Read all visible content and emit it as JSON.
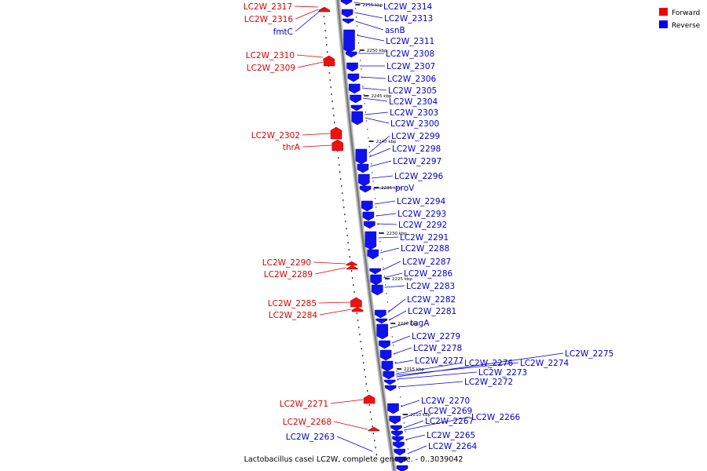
{
  "legend": [
    {
      "label": "Forward",
      "color": "#ee0000"
    },
    {
      "label": "Reverse",
      "color": "#0000ee"
    }
  ],
  "caption": "Lactobacillus casei LC2W, complete genome. - 0..3039042",
  "ticks": [
    "2255 kbp",
    "2250 kbp",
    "2245 kbp",
    "2240 kbp",
    "2235 kbp",
    "2230 kbp",
    "2225 kbp",
    "2220 kbp",
    "2215 kbp",
    "2210 kbp"
  ],
  "genes_forward": [
    {
      "name": "LC2W_2317"
    },
    {
      "name": "LC2W_2316"
    },
    {
      "name": "LC2W_2310"
    },
    {
      "name": "LC2W_2309"
    },
    {
      "name": "LC2W_2302"
    },
    {
      "name": "thrA"
    },
    {
      "name": "LC2W_2290"
    },
    {
      "name": "LC2W_2289"
    },
    {
      "name": "LC2W_2285"
    },
    {
      "name": "LC2W_2284"
    },
    {
      "name": "LC2W_2271"
    },
    {
      "name": "LC2W_2268"
    }
  ],
  "genes_reverse": [
    {
      "name": "fmtC"
    },
    {
      "name": "LC2W_2263"
    },
    {
      "name": "LC2W_2314"
    },
    {
      "name": "LC2W_2313"
    },
    {
      "name": "asnB"
    },
    {
      "name": "LC2W_2311"
    },
    {
      "name": "LC2W_2308"
    },
    {
      "name": "LC2W_2307"
    },
    {
      "name": "LC2W_2306"
    },
    {
      "name": "LC2W_2305"
    },
    {
      "name": "LC2W_2304"
    },
    {
      "name": "LC2W_2303"
    },
    {
      "name": "LC2W_2300"
    },
    {
      "name": "LC2W_2299"
    },
    {
      "name": "LC2W_2298"
    },
    {
      "name": "LC2W_2297"
    },
    {
      "name": "LC2W_2296"
    },
    {
      "name": "proV"
    },
    {
      "name": "LC2W_2294"
    },
    {
      "name": "LC2W_2293"
    },
    {
      "name": "LC2W_2292"
    },
    {
      "name": "LC2W_2291"
    },
    {
      "name": "LC2W_2288"
    },
    {
      "name": "LC2W_2287"
    },
    {
      "name": "LC2W_2286"
    },
    {
      "name": "LC2W_2283"
    },
    {
      "name": "LC2W_2282"
    },
    {
      "name": "LC2W_2281"
    },
    {
      "name": "tagA"
    },
    {
      "name": "LC2W_2279"
    },
    {
      "name": "LC2W_2278"
    },
    {
      "name": "LC2W_2277"
    },
    {
      "name": "LC2W_2276"
    },
    {
      "name": "LC2W_2274"
    },
    {
      "name": "LC2W_2275"
    },
    {
      "name": "LC2W_2273"
    },
    {
      "name": "LC2W_2272"
    },
    {
      "name": "LC2W_2270"
    },
    {
      "name": "LC2W_2269"
    },
    {
      "name": "LC2W_2267"
    },
    {
      "name": "LC2W_2266"
    },
    {
      "name": "LC2W_2265"
    },
    {
      "name": "LC2W_2264"
    }
  ]
}
